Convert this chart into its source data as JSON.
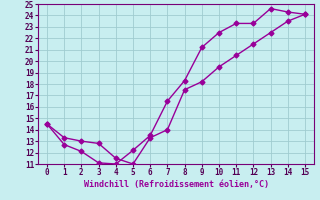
{
  "xlabel": "Windchill (Refroidissement éolien,°C)",
  "xlim": [
    -0.5,
    15.5
  ],
  "ylim": [
    11,
    25
  ],
  "xticks": [
    0,
    1,
    2,
    3,
    4,
    5,
    6,
    7,
    8,
    9,
    10,
    11,
    12,
    13,
    14,
    15
  ],
  "yticks": [
    11,
    12,
    13,
    14,
    15,
    16,
    17,
    18,
    19,
    20,
    21,
    22,
    23,
    24,
    25
  ],
  "background_color": "#c8eef0",
  "grid_color": "#a0ccd0",
  "line_color": "#990099",
  "series1_x": [
    0,
    1,
    2,
    3,
    4,
    5,
    6,
    7,
    8,
    9,
    10,
    11,
    12,
    13,
    14,
    15
  ],
  "series1_y": [
    14.5,
    12.7,
    12.1,
    11.1,
    11.0,
    12.2,
    13.5,
    16.5,
    18.3,
    21.2,
    22.5,
    23.3,
    23.3,
    24.6,
    24.3,
    24.1
  ],
  "series2_x": [
    0,
    1,
    2,
    3,
    4,
    5,
    6,
    7,
    8,
    9,
    10,
    11,
    12,
    13,
    14,
    15
  ],
  "series2_y": [
    14.5,
    13.3,
    13.0,
    12.8,
    11.5,
    11.0,
    13.3,
    14.0,
    17.5,
    18.2,
    19.5,
    20.5,
    21.5,
    22.5,
    23.5,
    24.1
  ],
  "marker_size": 2.5,
  "line_width": 1.0,
  "font_family": "monospace",
  "tick_fontsize": 5.5,
  "xlabel_fontsize": 6.0
}
